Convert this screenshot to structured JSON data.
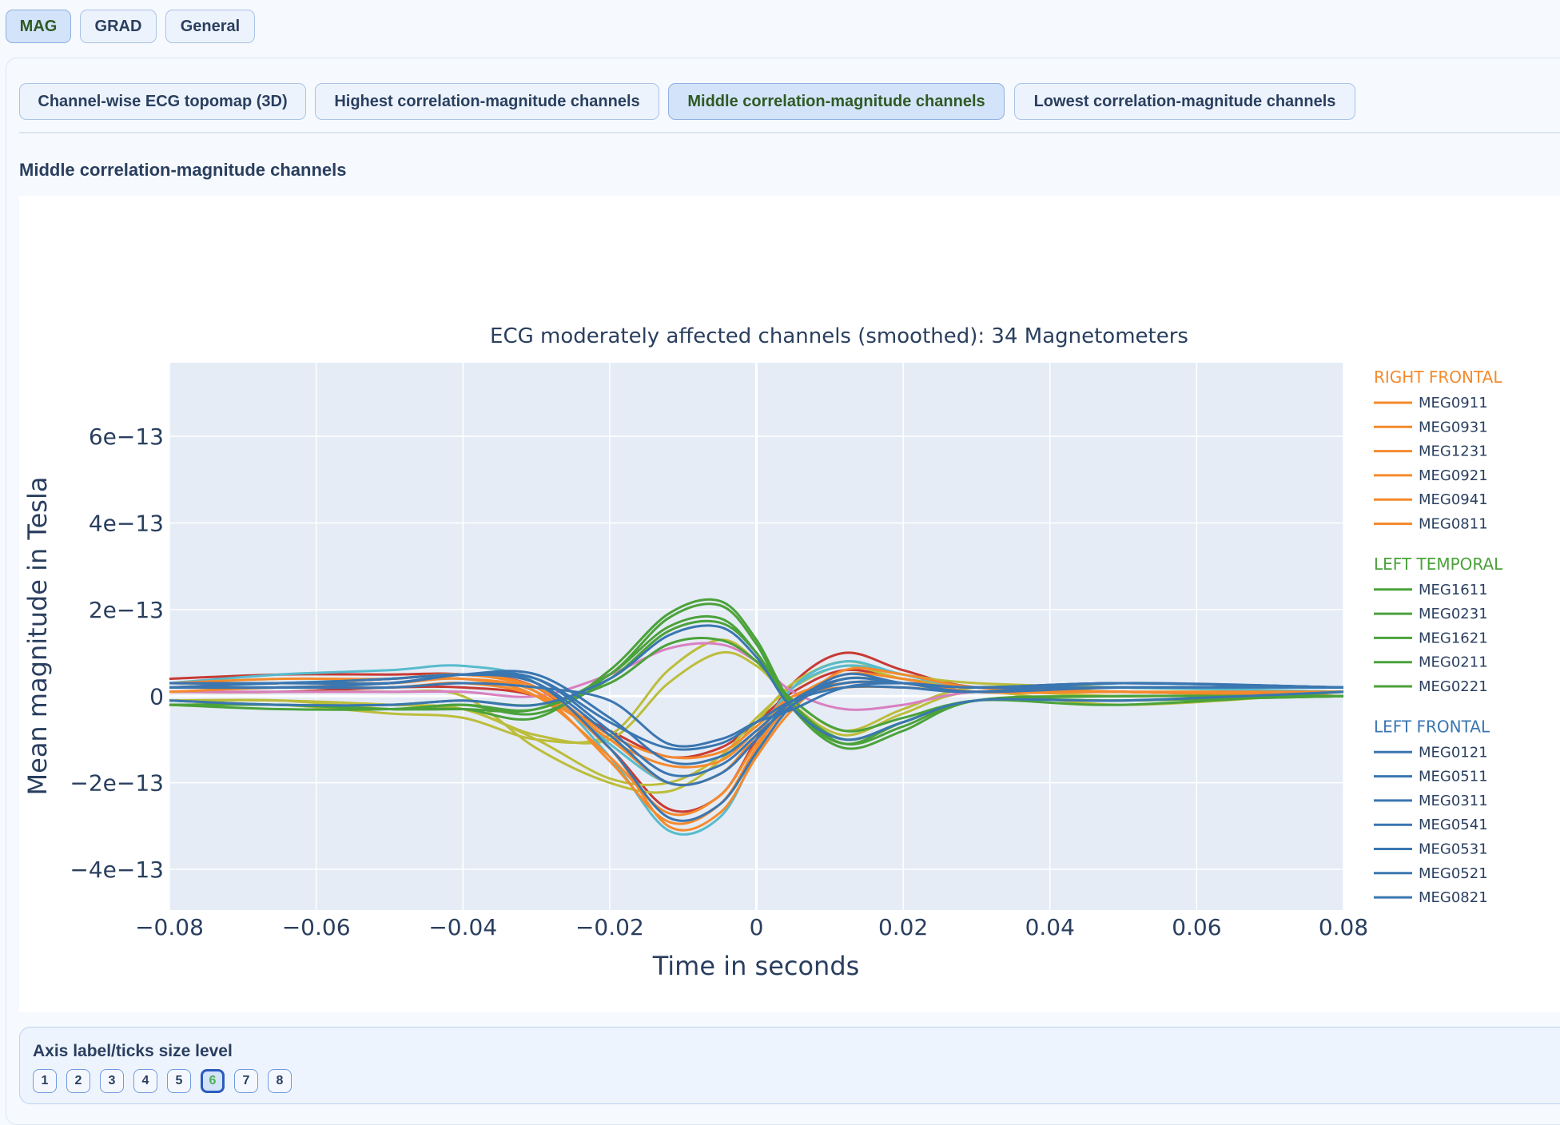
{
  "sensor_tabs": [
    {
      "label": "MAG",
      "active": true
    },
    {
      "label": "GRAD",
      "active": false
    },
    {
      "label": "General",
      "active": false
    }
  ],
  "view_tabs": [
    {
      "label": "Channel-wise ECG topomap (3D)",
      "active": false
    },
    {
      "label": "Highest correlation-magnitude channels",
      "active": false
    },
    {
      "label": "Middle correlation-magnitude channels",
      "active": true
    },
    {
      "label": "Lowest correlation-magnitude channels",
      "active": false
    }
  ],
  "section_heading": "Middle correlation-magnitude channels",
  "size_level": {
    "label": "Axis label/ticks size level",
    "levels": [
      "1",
      "2",
      "3",
      "4",
      "5",
      "6",
      "7",
      "8"
    ],
    "selected": "6"
  },
  "chart_data": {
    "type": "line",
    "title": "ECG moderately affected channels (smoothed): 34 Magnetometers",
    "xlabel": "Time in seconds",
    "ylabel": "Mean magnitude in Tesla",
    "xlim": [
      -0.08,
      0.08
    ],
    "ylim": [
      -4.94,
      7.7
    ],
    "y_unit_multiplier": "1e-13",
    "x_ticks": [
      -0.08,
      -0.06,
      -0.04,
      -0.02,
      0,
      0.02,
      0.04,
      0.06,
      0.08
    ],
    "x_tick_labels": [
      "−0.08",
      "−0.06",
      "−0.04",
      "−0.02",
      "0",
      "0.02",
      "0.04",
      "0.06",
      "0.08"
    ],
    "y_ticks": [
      -4,
      -2,
      0,
      2,
      4,
      6
    ],
    "y_tick_labels": [
      "−4e−13",
      "−2e−13",
      "0",
      "2e−13",
      "4e−13",
      "6e−13"
    ],
    "grid": true,
    "legend_position": "right",
    "x": [
      -0.08,
      -0.065,
      -0.05,
      -0.04,
      -0.03,
      -0.02,
      -0.012,
      -0.005,
      0,
      0.005,
      0.012,
      0.02,
      0.03,
      0.05,
      0.08
    ],
    "groups": [
      {
        "name": "RIGHT FRONTAL",
        "color": "#f58a2c",
        "series": [
          {
            "name": "MEG0911",
            "values": [
              0.3,
              0.4,
              0.4,
              0.5,
              0.1,
              -1.5,
              -2.9,
              -2.5,
              -1.2,
              -0.1,
              0.5,
              0.4,
              0.1,
              0.1,
              0.1
            ]
          },
          {
            "name": "MEG0931",
            "values": [
              0.2,
              0.3,
              0.3,
              0.4,
              0,
              -1.4,
              -2.7,
              -2.3,
              -1.1,
              -0.2,
              0.4,
              0.3,
              0.1,
              0.1,
              0.0
            ]
          },
          {
            "name": "MEG1231",
            "values": [
              0.3,
              0.3,
              0.4,
              0.5,
              0.2,
              -1.0,
              -1.6,
              -1.5,
              -0.8,
              -0.1,
              0.3,
              0.3,
              0.2,
              0.1,
              0.1
            ]
          },
          {
            "name": "MEG0921",
            "values": [
              0.2,
              0.2,
              0.3,
              0.4,
              0.1,
              -1.2,
              -3.0,
              -2.7,
              -1.4,
              -0.3,
              0.6,
              0.5,
              0.2,
              0.1,
              0.0
            ]
          },
          {
            "name": "MEG0941",
            "values": [
              0.1,
              0.2,
              0.2,
              0.3,
              0.0,
              -1.0,
              -2.0,
              -1.8,
              -0.9,
              0,
              0.3,
              0.3,
              0.1,
              0.1,
              0.0
            ]
          },
          {
            "name": "MEG0811",
            "values": [
              0.3,
              0.3,
              0.4,
              0.5,
              0.2,
              -0.9,
              -1.4,
              -1.3,
              -0.7,
              0,
              0.2,
              0.2,
              0.1,
              0.1,
              0.1
            ]
          }
        ]
      },
      {
        "name": "LEFT TEMPORAL",
        "color": "#4ba23a",
        "series": [
          {
            "name": "MEG1611",
            "values": [
              -0.2,
              -0.3,
              -0.3,
              -0.2,
              -0.3,
              0.5,
              1.8,
              2.1,
              1.2,
              -0.3,
              -1.2,
              -0.8,
              -0.1,
              0,
              0
            ]
          },
          {
            "name": "MEG0231",
            "values": [
              -0.2,
              -0.2,
              -0.3,
              -0.3,
              -0.5,
              0.6,
              1.9,
              2.2,
              1.3,
              -0.2,
              -1.1,
              -0.7,
              -0.1,
              -0.1,
              0
            ]
          },
          {
            "name": "MEG1621",
            "values": [
              -0.2,
              -0.2,
              -0.3,
              -0.2,
              -0.4,
              0.4,
              1.5,
              1.7,
              1.0,
              -0.2,
              -1.0,
              -0.6,
              -0.1,
              -0.1,
              0
            ]
          },
          {
            "name": "MEG0211",
            "values": [
              -0.1,
              -0.2,
              -0.2,
              -0.1,
              -0.2,
              0.3,
              1.2,
              1.3,
              0.8,
              -0.1,
              -0.8,
              -0.5,
              -0.1,
              0,
              0
            ]
          },
          {
            "name": "MEG0221",
            "values": [
              -0.2,
              -0.2,
              -0.3,
              -0.3,
              -0.3,
              0.5,
              1.6,
              1.8,
              1.0,
              -0.3,
              -1.1,
              -0.6,
              -0.1,
              -0.2,
              0.1
            ]
          }
        ]
      },
      {
        "name": "LEFT FRONTAL",
        "color": "#3a76b0",
        "series": [
          {
            "name": "MEG0121",
            "values": [
              0.3,
              0.3,
              0.3,
              0.5,
              0.5,
              -0.5,
              -1.5,
              -1.4,
              -0.8,
              -0.1,
              0.3,
              0.3,
              0.2,
              0.3,
              0.2
            ]
          },
          {
            "name": "MEG0511",
            "values": [
              0.2,
              0.2,
              0.3,
              0.5,
              0.4,
              -0.8,
              -1.8,
              -1.6,
              -0.9,
              -0.2,
              0.4,
              0.3,
              0.2,
              0.3,
              0.2
            ]
          },
          {
            "name": "MEG0311",
            "values": [
              0.2,
              0.3,
              0.3,
              0.5,
              0.3,
              -1.2,
              -2.8,
              -2.5,
              -1.3,
              -0.2,
              0.5,
              0.3,
              0.2,
              0.2,
              0.2
            ]
          },
          {
            "name": "MEG0541",
            "values": [
              0.3,
              0.3,
              0.4,
              0.5,
              0.4,
              -0.6,
              -1.2,
              -1.1,
              -0.6,
              -0.1,
              0.2,
              0.2,
              0.1,
              0.3,
              0.2
            ]
          },
          {
            "name": "MEG0531",
            "values": [
              -0.1,
              -0.2,
              -0.2,
              -0.1,
              -0.2,
              0.4,
              1.4,
              1.6,
              0.9,
              -0.3,
              -1.0,
              -0.6,
              -0.1,
              -0.1,
              0.1
            ]
          },
          {
            "name": "MEG0521",
            "values": [
              0.3,
              0.3,
              0.4,
              0.5,
              0.3,
              -0.9,
              -2.0,
              -1.8,
              -1.0,
              -0.1,
              0.4,
              0.3,
              0.1,
              0.2,
              0.2
            ]
          },
          {
            "name": "MEG0821",
            "values": [
              0.2,
              0.2,
              0.2,
              0.3,
              0.2,
              -0.1,
              -1.1,
              -1.0,
              -0.6,
              -0.3,
              0.2,
              0.3,
              0.2,
              0.3,
              0.2
            ]
          }
        ]
      }
    ],
    "unlisted_series": [
      {
        "color": "#c83a33",
        "values": [
          0.4,
          0.5,
          0.5,
          0.5,
          0.2,
          -1.2,
          -2.6,
          -2.3,
          -1.0,
          0.3,
          1.0,
          0.6,
          0.2,
          0.1,
          0.0
        ]
      },
      {
        "color": "#c83a33",
        "values": [
          0.1,
          0.1,
          0.2,
          0.2,
          0.0,
          -0.8,
          -1.4,
          -1.2,
          -0.6,
          0.1,
          0.6,
          0.4,
          0.2,
          0.1,
          0.0
        ]
      },
      {
        "color": "#bcbd3a",
        "values": [
          -0.1,
          -0.1,
          -0.3,
          -0.3,
          -0.9,
          -1.0,
          0.3,
          1.0,
          0.7,
          -0.1,
          -0.8,
          -0.3,
          0.2,
          0.1,
          0.1
        ]
      },
      {
        "color": "#bcbd3a",
        "values": [
          -0.2,
          -0.2,
          -0.4,
          -0.5,
          -1.0,
          -0.9,
          0.6,
          1.3,
          0.8,
          -0.2,
          -0.9,
          -0.4,
          0.1,
          -0.2,
          0.1
        ]
      },
      {
        "color": "#bcbd3a",
        "values": [
          0.1,
          0.1,
          0.1,
          0.0,
          -1.2,
          -2.0,
          -2.2,
          -1.5,
          -0.6,
          0.3,
          0.8,
          0.5,
          0.3,
          0.2,
          0.1
        ]
      },
      {
        "color": "#bcbd3a",
        "values": [
          -0.1,
          -0.1,
          -0.2,
          -0.3,
          -1.0,
          -1.9,
          -2.0,
          -1.4,
          -0.5,
          0.2,
          0.7,
          0.4,
          0.2,
          0,
          0.1
        ]
      },
      {
        "color": "#57bbcc",
        "values": [
          0.3,
          0.5,
          0.6,
          0.7,
          0.3,
          -1.4,
          -3.1,
          -2.8,
          -1.3,
          0.2,
          0.8,
          0.5,
          0.2,
          0.2,
          0.1
        ]
      },
      {
        "color": "#57bbcc",
        "values": [
          0.2,
          0.3,
          0.4,
          0.5,
          0.3,
          -1.1,
          -2.0,
          -1.8,
          -0.9,
          0.2,
          0.7,
          0.5,
          0.2,
          0.2,
          0.1
        ]
      },
      {
        "color": "#d97fc0",
        "values": [
          0.1,
          0.1,
          0.1,
          0.1,
          0.0,
          0.5,
          1.1,
          1.2,
          0.8,
          0.1,
          -0.3,
          -0.2,
          0.1,
          0.1,
          0.0
        ]
      }
    ]
  }
}
